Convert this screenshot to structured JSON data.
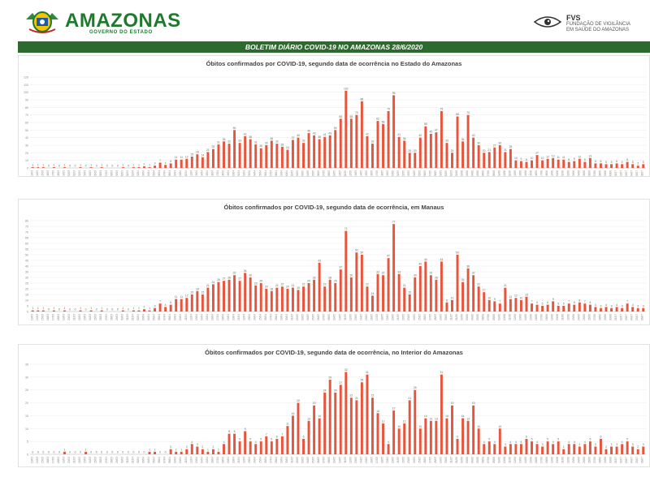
{
  "header": {
    "brand": "AMAZONAS",
    "brand_sub": "GOVERNO DO ESTADO",
    "fvs_short": "FVS",
    "fvs_name_line1": "FUNDAÇÃO DE VIGILÂNCIA",
    "fvs_name_line2": "EM SAÚDE DO AMAZONAS",
    "accent_color": "#2d6a2e",
    "brand_color": "#1f7a2e"
  },
  "bulletin_title": "BOLETIM DIÁRIO COVID-19 NO AMAZONAS 28/6/2020",
  "chart_data": [
    {
      "type": "bar",
      "title": "Óbitos confirmados por COVID-19, segundo data de ocorrência no Estado do Amazonas",
      "xlabel": "",
      "ylabel": "",
      "ylim": [
        0,
        120
      ],
      "yticks": [
        0,
        10,
        20,
        30,
        40,
        50,
        60,
        70,
        80,
        90,
        100,
        110,
        120
      ],
      "bar_color": "#e8553c",
      "start_date": "2020-03-13",
      "values": [
        1,
        1,
        1,
        0,
        1,
        0,
        1,
        0,
        0,
        1,
        0,
        1,
        0,
        1,
        0,
        0,
        0,
        1,
        0,
        1,
        1,
        2,
        1,
        3,
        7,
        4,
        6,
        11,
        11,
        12,
        15,
        18,
        14,
        21,
        25,
        31,
        35,
        32,
        50,
        33,
        42,
        38,
        31,
        26,
        30,
        36,
        32,
        28,
        24,
        37,
        40,
        33,
        46,
        43,
        38,
        41,
        43,
        50,
        65,
        102,
        65,
        70,
        88,
        42,
        32,
        62,
        58,
        75,
        96,
        41,
        36,
        20,
        20,
        40,
        55,
        45,
        47,
        75,
        33,
        20,
        68,
        35,
        70,
        40,
        30,
        20,
        21,
        27,
        30,
        21,
        25,
        10,
        9,
        8,
        10,
        17,
        10,
        12,
        13,
        11,
        11,
        8,
        9,
        12,
        8,
        13,
        6,
        6,
        5,
        5,
        6,
        5,
        8,
        5,
        3,
        5
      ]
    },
    {
      "type": "bar",
      "title": "Óbitos confirmados por COVID-19, segundo data de ocorrência, em Manaus",
      "xlabel": "",
      "ylabel": "",
      "ylim": [
        0,
        80
      ],
      "yticks": [
        0,
        5,
        10,
        15,
        20,
        25,
        30,
        35,
        40,
        45,
        50,
        55,
        60,
        65,
        70,
        75,
        80
      ],
      "bar_color": "#e8553c",
      "start_date": "2020-03-13",
      "values": [
        1,
        1,
        1,
        0,
        1,
        0,
        1,
        0,
        0,
        1,
        0,
        1,
        0,
        1,
        0,
        0,
        0,
        1,
        0,
        1,
        1,
        2,
        1,
        3,
        7,
        4,
        6,
        11,
        11,
        12,
        15,
        18,
        15,
        21,
        24,
        26,
        27,
        28,
        32,
        27,
        34,
        30,
        23,
        25,
        20,
        18,
        21,
        22,
        20,
        21,
        19,
        22,
        25,
        28,
        43,
        22,
        28,
        25,
        37,
        71,
        30,
        52,
        50,
        22,
        14,
        33,
        32,
        47,
        77,
        33,
        21,
        15,
        30,
        40,
        44,
        32,
        28,
        44,
        8,
        10,
        50,
        26,
        38,
        32,
        22,
        17,
        10,
        9,
        7,
        21,
        11,
        12,
        10,
        13,
        7,
        6,
        5,
        6,
        9,
        5,
        5,
        7,
        6,
        8,
        7,
        6,
        4,
        3,
        4,
        3,
        4,
        3,
        7,
        4,
        3,
        3
      ]
    },
    {
      "type": "bar",
      "title": "Óbitos  confirmados por COVID-19, segundo data de ocorrência, no Interior do Amazonas",
      "xlabel": "",
      "ylabel": "",
      "ylim": [
        0,
        35
      ],
      "yticks": [
        0,
        5,
        10,
        15,
        20,
        25,
        30,
        35
      ],
      "bar_color": "#e8553c",
      "start_date": "2020-03-13",
      "values": [
        0,
        0,
        0,
        0,
        0,
        0,
        1,
        0,
        0,
        0,
        1,
        0,
        0,
        0,
        0,
        0,
        0,
        0,
        0,
        0,
        0,
        0,
        1,
        1,
        0,
        0,
        2,
        1,
        1,
        2,
        4,
        3,
        2,
        1,
        2,
        1,
        4,
        8,
        8,
        5,
        9,
        5,
        4,
        5,
        7,
        5,
        6,
        7,
        11,
        15,
        20,
        6,
        13,
        19,
        14,
        24,
        29,
        24,
        27,
        32,
        22,
        21,
        28,
        31,
        22,
        16,
        12,
        4,
        17,
        10,
        12,
        21,
        25,
        10,
        14,
        13,
        13,
        31,
        14,
        19,
        6,
        14,
        13,
        19,
        10,
        4,
        5,
        4,
        10,
        3,
        4,
        4,
        4,
        6,
        5,
        4,
        3,
        5,
        4,
        5,
        2,
        4,
        4,
        3,
        4,
        5,
        3,
        6,
        2,
        3,
        3,
        4,
        5,
        3,
        2,
        3
      ]
    }
  ]
}
